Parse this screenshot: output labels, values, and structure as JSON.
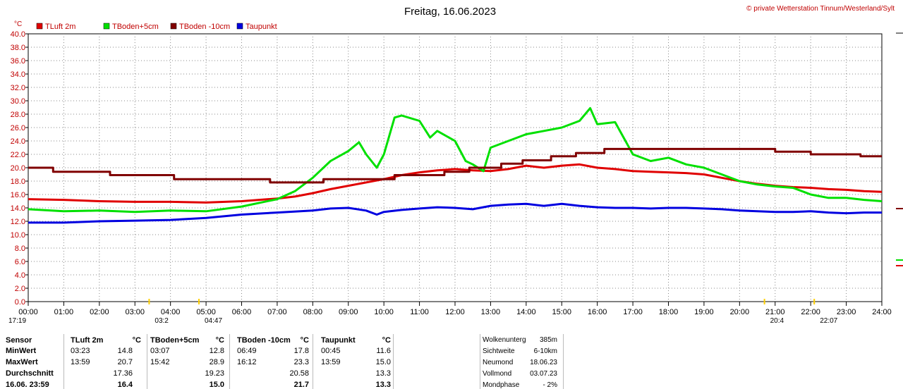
{
  "header": {
    "title": "Freitag, 16.06.2023",
    "copyright": "© private Wetterstation Tinnum/Westerland/Sylt"
  },
  "chart_data": {
    "type": "line",
    "title": "Freitag, 16.06.2023",
    "ylabel": "°C",
    "ylim": [
      0,
      40
    ],
    "yticks": [
      "0.0",
      "2.0",
      "4.0",
      "6.0",
      "8.0",
      "10.0",
      "12.0",
      "14.0",
      "16.0",
      "18.0",
      "20.0",
      "22.0",
      "24.0",
      "26.0",
      "28.0",
      "30.0",
      "32.0",
      "34.0",
      "36.0",
      "38.0",
      "40.0"
    ],
    "xlim": [
      0,
      24
    ],
    "xticks": [
      "00:00",
      "01:00",
      "02:00",
      "03:00",
      "04:00",
      "05:00",
      "06:00",
      "07:00",
      "08:00",
      "09:00",
      "10:00",
      "11:00",
      "12:00",
      "13:00",
      "14:00",
      "15:00",
      "16:00",
      "17:00",
      "18:00",
      "19:00",
      "20:00",
      "21:00",
      "22:00",
      "23:00",
      "24:00"
    ],
    "grid": true,
    "legend": "top-left",
    "series": [
      {
        "name": "TLuft 2m",
        "color": "#e00000",
        "x": [
          0,
          1,
          2,
          3,
          4,
          5,
          6,
          7,
          7.5,
          8,
          8.5,
          9,
          9.5,
          10,
          10.5,
          11,
          11.5,
          12,
          12.5,
          13,
          13.5,
          14,
          14.5,
          15,
          15.5,
          16,
          16.5,
          17,
          17.5,
          18,
          18.5,
          19,
          19.5,
          20,
          20.5,
          21,
          21.5,
          22,
          22.5,
          23,
          23.5,
          24
        ],
        "y": [
          15.3,
          15.2,
          15.0,
          14.9,
          14.9,
          14.8,
          15.0,
          15.4,
          15.7,
          16.2,
          16.8,
          17.3,
          17.8,
          18.3,
          18.9,
          19.3,
          19.6,
          19.8,
          19.6,
          19.5,
          19.8,
          20.3,
          20.0,
          20.3,
          20.5,
          20.0,
          19.8,
          19.5,
          19.4,
          19.3,
          19.2,
          19.0,
          18.5,
          18.0,
          17.6,
          17.3,
          17.1,
          17.0,
          16.8,
          16.7,
          16.5,
          16.4
        ]
      },
      {
        "name": "TBoden+5cm",
        "color": "#00e000",
        "x": [
          0,
          1,
          2,
          3,
          4,
          5,
          6,
          7,
          7.5,
          8,
          8.5,
          9,
          9.3,
          9.5,
          9.8,
          10,
          10.3,
          10.5,
          11,
          11.3,
          11.5,
          12,
          12.3,
          12.5,
          12.8,
          13,
          13.5,
          14,
          14.5,
          15,
          15.5,
          15.8,
          16,
          16.5,
          17,
          17.5,
          18,
          18.5,
          19,
          19.5,
          20,
          20.5,
          21,
          21.5,
          22,
          22.5,
          23,
          23.5,
          24
        ],
        "y": [
          13.8,
          13.5,
          13.6,
          13.4,
          13.6,
          13.5,
          14.2,
          15.3,
          16.5,
          18.5,
          21.0,
          22.5,
          23.8,
          22.0,
          20.0,
          22.0,
          27.5,
          27.8,
          27.0,
          24.5,
          25.5,
          24.0,
          21.0,
          20.5,
          19.5,
          23.0,
          24.0,
          25.0,
          25.5,
          26.0,
          27.0,
          28.9,
          26.5,
          26.8,
          22.0,
          21.0,
          21.5,
          20.5,
          20.0,
          19.0,
          18.0,
          17.5,
          17.2,
          17.0,
          16.0,
          15.5,
          15.5,
          15.2,
          15.0
        ]
      },
      {
        "name": "TBoden -10cm",
        "color": "#800000",
        "x": [
          0,
          0.7,
          0.7,
          2.3,
          2.3,
          4.1,
          4.1,
          6.8,
          6.8,
          8.3,
          8.3,
          10.3,
          10.3,
          11.7,
          11.7,
          12.4,
          12.4,
          13.3,
          13.3,
          13.9,
          13.9,
          14.7,
          14.7,
          15.4,
          15.4,
          16.2,
          16.2,
          21.0,
          21.0,
          22.0,
          22.0,
          23.4,
          23.4,
          24
        ],
        "y": [
          20.0,
          20.0,
          19.4,
          19.4,
          18.9,
          18.9,
          18.3,
          18.3,
          17.8,
          17.8,
          18.3,
          18.3,
          18.9,
          18.9,
          19.4,
          19.4,
          20.0,
          20.0,
          20.6,
          20.6,
          21.1,
          21.1,
          21.7,
          21.7,
          22.2,
          22.2,
          22.8,
          22.8,
          22.4,
          22.4,
          22.0,
          22.0,
          21.7,
          21.7
        ]
      },
      {
        "name": "Taupunkt",
        "color": "#0000e0",
        "x": [
          0,
          1,
          2,
          3,
          4,
          5,
          6,
          7,
          8,
          8.5,
          9,
          9.5,
          9.8,
          10,
          10.5,
          11,
          11.5,
          12,
          12.5,
          13,
          13.5,
          14,
          14.5,
          15,
          15.5,
          16,
          16.5,
          17,
          17.5,
          18,
          18.5,
          19,
          19.5,
          20,
          20.5,
          21,
          21.5,
          22,
          22.5,
          23,
          23.5,
          24
        ],
        "y": [
          11.8,
          11.8,
          12.0,
          12.1,
          12.2,
          12.5,
          13.0,
          13.3,
          13.6,
          13.9,
          14.0,
          13.6,
          13.0,
          13.4,
          13.7,
          13.9,
          14.1,
          14.0,
          13.8,
          14.3,
          14.5,
          14.6,
          14.3,
          14.6,
          14.3,
          14.1,
          14.0,
          14.0,
          13.9,
          14.0,
          14.0,
          13.9,
          13.8,
          13.6,
          13.5,
          13.4,
          13.4,
          13.5,
          13.3,
          13.2,
          13.3,
          13.3
        ]
      }
    ],
    "annotations": [
      {
        "label": "17:19",
        "x": 0.0
      },
      {
        "label": "03:2",
        "x": 3.4
      },
      {
        "label": "04:47",
        "x": 4.8
      },
      {
        "label": "20:4",
        "x": 20.7
      },
      {
        "label": "22:07",
        "x": 22.1
      }
    ]
  },
  "stats": {
    "header": [
      "Sensor",
      "TLuft 2m",
      "°C",
      "TBoden+5cm",
      "°C",
      "TBoden -10cm",
      "°C",
      "Taupunkt",
      "°C"
    ],
    "rows": [
      [
        "MinWert",
        "03:23",
        "14.8",
        "03:07",
        "12.8",
        "06:49",
        "17.8",
        "00:45",
        "11.6"
      ],
      [
        "MaxWert",
        "13:59",
        "20.7",
        "15:42",
        "28.9",
        "16:12",
        "23.3",
        "13:59",
        "15.0"
      ],
      [
        "Durchschnitt",
        "",
        "17.36",
        "",
        "19.23",
        "",
        "20.58",
        "",
        "13.3"
      ],
      [
        "16.06.  23:59",
        "",
        "16.4",
        "",
        "15.0",
        "",
        "21.7",
        "",
        "13.3"
      ]
    ]
  },
  "weather": [
    {
      "label": "Wolkenunterg",
      "value": "385m"
    },
    {
      "label": "Sichtweite",
      "value": "6-10km"
    },
    {
      "label": "Neumond",
      "value": "18.06.23"
    },
    {
      "label": "Vollmond",
      "value": "03.07.23"
    },
    {
      "label": "Mondphase",
      "value": "- 2%"
    }
  ]
}
